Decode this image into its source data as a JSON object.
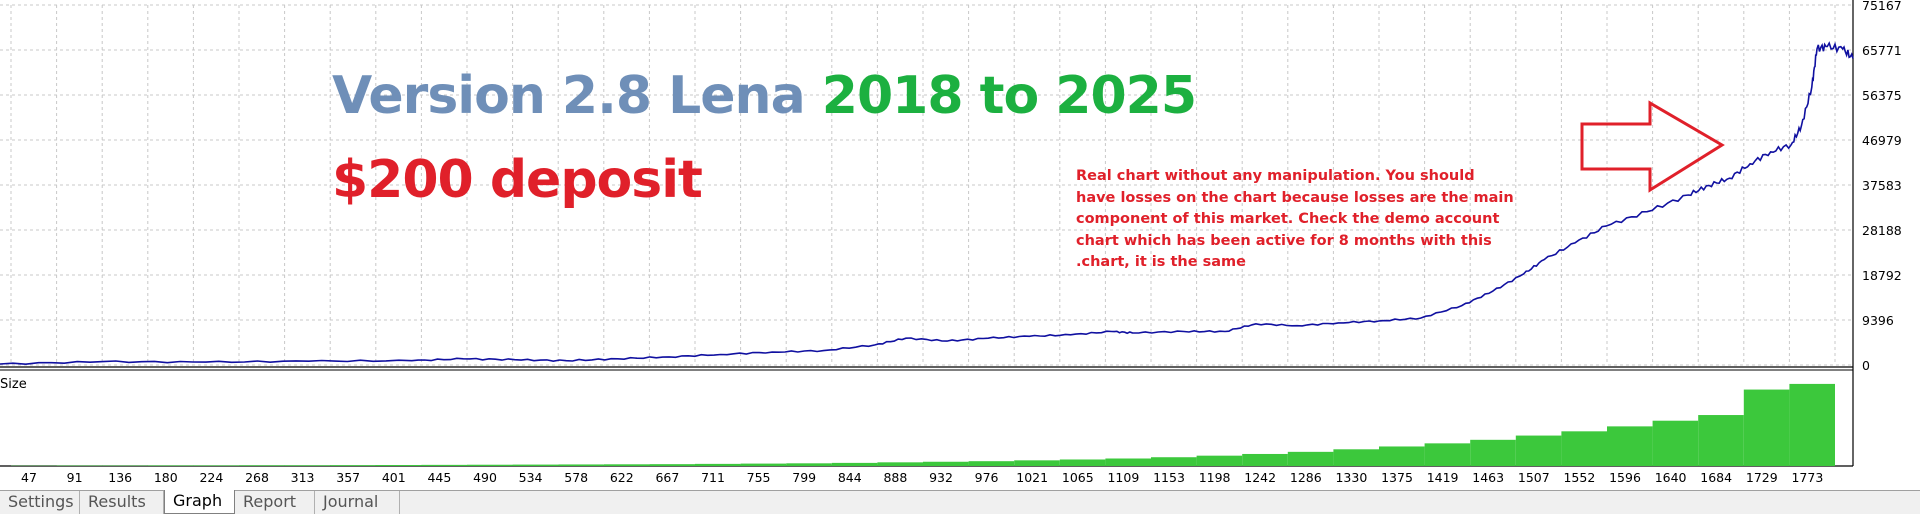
{
  "colors": {
    "equity_line": "#1010a0",
    "volume_bars": "#3cc83c",
    "grid": "#c8c8c8",
    "title_blue": "#6f8fb8",
    "title_green": "#1cb040",
    "red": "#e0202a"
  },
  "overlay": {
    "title_main": "Version 2.8 Lena ",
    "title_years": "2018 to 2025",
    "deposit": "$200 deposit",
    "note": "Real chart without any manipulation. You should have losses on the chart because losses are the main component of this market. Check the demo account chart which has been active for 8 months with this .chart, it is the same",
    "arrow_icon": "right-arrow-icon"
  },
  "chart_data": [
    {
      "type": "line",
      "y_ticks": [
        "75167",
        "65771",
        "56375",
        "46979",
        "37583",
        "28188",
        "18792",
        "9396",
        "0"
      ],
      "ylim": [
        0,
        75167
      ],
      "xlim": [
        0,
        1800
      ],
      "grid": true,
      "series": [
        {
          "values": [
            [
              0,
              200
            ],
            [
              100,
              700
            ],
            [
              200,
              600
            ],
            [
              300,
              800
            ],
            [
              400,
              900
            ],
            [
              450,
              1300
            ],
            [
              500,
              1100
            ],
            [
              550,
              900
            ],
            [
              600,
              1300
            ],
            [
              650,
              1700
            ],
            [
              700,
              2200
            ],
            [
              750,
              2700
            ],
            [
              800,
              3000
            ],
            [
              850,
              4200
            ],
            [
              880,
              5600
            ],
            [
              920,
              5000
            ],
            [
              960,
              5600
            ],
            [
              1000,
              6000
            ],
            [
              1040,
              6300
            ],
            [
              1080,
              7000
            ],
            [
              1100,
              6700
            ],
            [
              1150,
              7000
            ],
            [
              1190,
              7000
            ],
            [
              1220,
              8600
            ],
            [
              1260,
              8200
            ],
            [
              1300,
              8800
            ],
            [
              1340,
              9200
            ],
            [
              1380,
              9800
            ],
            [
              1420,
              12400
            ],
            [
              1450,
              15400
            ],
            [
              1480,
              19000
            ],
            [
              1500,
              22000
            ],
            [
              1530,
              25500
            ],
            [
              1560,
              29000
            ],
            [
              1600,
              32000
            ],
            [
              1640,
              35500
            ],
            [
              1660,
              37500
            ],
            [
              1680,
              39000
            ],
            [
              1700,
              42000
            ],
            [
              1720,
              44500
            ],
            [
              1740,
              46000
            ],
            [
              1750,
              50000
            ],
            [
              1760,
              58000
            ],
            [
              1765,
              66000
            ],
            [
              1775,
              66500
            ],
            [
              1790,
              66000
            ],
            [
              1800,
              64000
            ]
          ]
        }
      ]
    },
    {
      "type": "bar",
      "ylabel": "Size",
      "categories": [
        "47",
        "91",
        "136",
        "180",
        "224",
        "268",
        "313",
        "357",
        "401",
        "445",
        "490",
        "534",
        "578",
        "622",
        "667",
        "711",
        "755",
        "799",
        "844",
        "888",
        "932",
        "976",
        "1021",
        "1065",
        "1109",
        "1153",
        "1198",
        "1242",
        "1286",
        "1330",
        "1375",
        "1419",
        "1463",
        "1507",
        "1552",
        "1596",
        "1640",
        "1684",
        "1729",
        "1773"
      ],
      "values": [
        0.2,
        0.3,
        0.3,
        0.4,
        0.4,
        0.5,
        0.5,
        0.6,
        0.7,
        0.8,
        0.9,
        1.0,
        1.1,
        1.2,
        1.3,
        1.5,
        1.7,
        1.9,
        2.2,
        2.6,
        3.0,
        3.4,
        4.0,
        4.6,
        5.3,
        6.2,
        7.3,
        8.5,
        10.0,
        11.8,
        13.8,
        16.0,
        18.5,
        21.5,
        24.5,
        28.0,
        32.0,
        36.0,
        54.0,
        58.0
      ],
      "ylim": [
        0,
        65
      ]
    }
  ],
  "tabs": [
    {
      "label": "Settings"
    },
    {
      "label": "Results"
    },
    {
      "label": "Graph"
    },
    {
      "label": "Report"
    },
    {
      "label": "Journal"
    }
  ]
}
